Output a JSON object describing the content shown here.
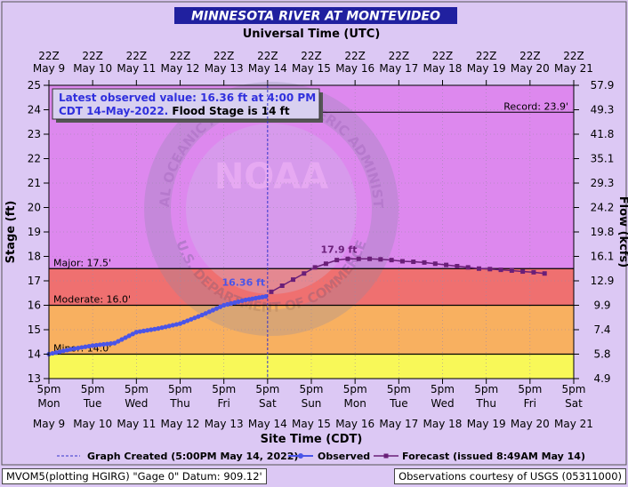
{
  "header": {
    "title": "MINNESOTA RIVER AT MONTEVIDEO"
  },
  "top_axis": {
    "title": "Universal Time (UTC)",
    "ticks": [
      {
        "time": "22Z",
        "date": "May 9"
      },
      {
        "time": "22Z",
        "date": "May 10"
      },
      {
        "time": "22Z",
        "date": "May 11"
      },
      {
        "time": "22Z",
        "date": "May 12"
      },
      {
        "time": "22Z",
        "date": "May 13"
      },
      {
        "time": "22Z",
        "date": "May 14"
      },
      {
        "time": "22Z",
        "date": "May 15"
      },
      {
        "time": "22Z",
        "date": "May 16"
      },
      {
        "time": "22Z",
        "date": "May 17"
      },
      {
        "time": "22Z",
        "date": "May 18"
      },
      {
        "time": "22Z",
        "date": "May 19"
      },
      {
        "time": "22Z",
        "date": "May 20"
      },
      {
        "time": "22Z",
        "date": "May 21"
      }
    ]
  },
  "bottom_axis": {
    "title": "Site Time (CDT)",
    "ticks": [
      {
        "time": "5pm",
        "day": "Mon",
        "date": "May 9"
      },
      {
        "time": "5pm",
        "day": "Tue",
        "date": "May 10"
      },
      {
        "time": "5pm",
        "day": "Wed",
        "date": "May 11"
      },
      {
        "time": "5pm",
        "day": "Thu",
        "date": "May 12"
      },
      {
        "time": "5pm",
        "day": "Fri",
        "date": "May 13"
      },
      {
        "time": "5pm",
        "day": "Sat",
        "date": "May 14"
      },
      {
        "time": "5pm",
        "day": "Sun",
        "date": "May 15"
      },
      {
        "time": "5pm",
        "day": "Mon",
        "date": "May 16"
      },
      {
        "time": "5pm",
        "day": "Tue",
        "date": "May 17"
      },
      {
        "time": "5pm",
        "day": "Wed",
        "date": "May 18"
      },
      {
        "time": "5pm",
        "day": "Thu",
        "date": "May 19"
      },
      {
        "time": "5pm",
        "day": "Fri",
        "date": "May 20"
      },
      {
        "time": "5pm",
        "day": "Sat",
        "date": "May 21"
      }
    ]
  },
  "left_axis": {
    "title": "Stage (ft)",
    "ticks": [
      "13",
      "14",
      "15",
      "16",
      "17",
      "18",
      "19",
      "20",
      "21",
      "22",
      "23",
      "24",
      "25"
    ]
  },
  "right_axis": {
    "title": "Flow (kcfs)",
    "ticks": [
      {
        "stage": 13,
        "label": "4.9"
      },
      {
        "stage": 14,
        "label": "5.8"
      },
      {
        "stage": 15,
        "label": "7.4"
      },
      {
        "stage": 16,
        "label": "9.9"
      },
      {
        "stage": 17,
        "label": "12.9"
      },
      {
        "stage": 18,
        "label": "16.1"
      },
      {
        "stage": 19,
        "label": "19.8"
      },
      {
        "stage": 20,
        "label": "24.2"
      },
      {
        "stage": 21,
        "label": "29.3"
      },
      {
        "stage": 22,
        "label": "35.1"
      },
      {
        "stage": 23,
        "label": "41.8"
      },
      {
        "stage": 24,
        "label": "49.3"
      },
      {
        "stage": 25,
        "label": "57.9"
      }
    ]
  },
  "info_box": {
    "line1": "Latest observed value: 16.36 ft at 4:00 PM",
    "line2_prefix": "CDT 14-May-2022. ",
    "line2_suffix": "Flood Stage is 14 ft"
  },
  "stage_labels": {
    "record": "Record: 23.9'",
    "major": "Major: 17.5'",
    "moderate": "Moderate: 16.0'",
    "minor": "Minor: 14.0'"
  },
  "annotations": {
    "latest": "16.36 ft",
    "crest": "17.9 ft"
  },
  "watermark": {
    "center": "NOAA",
    "ring_top": "NATIONAL OCEANIC AND ATMOSPHERIC ADMINISTRATION",
    "ring_bottom": "U.S. DEPARTMENT OF COMMERCE"
  },
  "legend": {
    "created": "Graph Created (5:00PM May 14, 2022)",
    "observed": "Observed",
    "forecast": "Forecast (issued 8:49AM May 14)"
  },
  "footer": {
    "left": "MVOM5(plotting HGIRG) \"Gage 0\" Datum: 909.12'",
    "right": "Observations courtesy of USGS (05311000)"
  },
  "colors": {
    "title_bg": "#20209f",
    "page_bg": "#dcc8f4",
    "zone_record": "#dd88ee",
    "zone_major": "#ef7070",
    "zone_moderate": "#f8b060",
    "zone_minor": "#f8f858",
    "observed": "#4a55e8",
    "forecast": "#6a1f78",
    "info_text": "#3030dd"
  },
  "chart_data": {
    "type": "line",
    "title": "MINNESOTA RIVER AT MONTEVIDEO",
    "xlabel": "Site Time (CDT)",
    "ylabel": "Stage (ft)",
    "y2label": "Flow (kcfs)",
    "xlim": [
      "2022-05-09 17:00",
      "2022-05-21 17:00"
    ],
    "ylim": [
      13,
      25
    ],
    "thresholds": {
      "record": 23.9,
      "major": 17.5,
      "moderate": 16.0,
      "minor": 14.0,
      "flood_stage": 14
    },
    "graph_created": "2022-05-14 17:00",
    "series": [
      {
        "name": "Observed",
        "x": [
          "2022-05-09 17:00",
          "2022-05-10 05:00",
          "2022-05-10 17:00",
          "2022-05-11 05:00",
          "2022-05-11 17:00",
          "2022-05-12 05:00",
          "2022-05-12 17:00",
          "2022-05-13 05:00",
          "2022-05-13 17:00",
          "2022-05-14 05:00",
          "2022-05-14 16:00"
        ],
        "y": [
          14.0,
          14.2,
          14.35,
          14.45,
          14.9,
          15.05,
          15.25,
          15.6,
          16.0,
          16.22,
          16.36
        ]
      },
      {
        "name": "Forecast (issued 8:49AM May 14)",
        "x": [
          "2022-05-14 19:00",
          "2022-05-15 01:00",
          "2022-05-15 07:00",
          "2022-05-15 13:00",
          "2022-05-15 19:00",
          "2022-05-16 01:00",
          "2022-05-16 07:00",
          "2022-05-16 13:00",
          "2022-05-16 19:00",
          "2022-05-17 01:00",
          "2022-05-17 07:00",
          "2022-05-17 13:00",
          "2022-05-17 19:00",
          "2022-05-18 01:00",
          "2022-05-18 07:00",
          "2022-05-18 13:00",
          "2022-05-18 19:00",
          "2022-05-19 01:00",
          "2022-05-19 07:00",
          "2022-05-19 13:00",
          "2022-05-19 19:00",
          "2022-05-20 01:00",
          "2022-05-20 07:00",
          "2022-05-20 13:00",
          "2022-05-20 19:00",
          "2022-05-21 01:00"
        ],
        "y": [
          16.55,
          16.8,
          17.05,
          17.3,
          17.55,
          17.7,
          17.85,
          17.9,
          17.9,
          17.9,
          17.88,
          17.85,
          17.8,
          17.78,
          17.75,
          17.7,
          17.65,
          17.6,
          17.55,
          17.5,
          17.48,
          17.45,
          17.42,
          17.38,
          17.35,
          17.3
        ]
      }
    ]
  }
}
